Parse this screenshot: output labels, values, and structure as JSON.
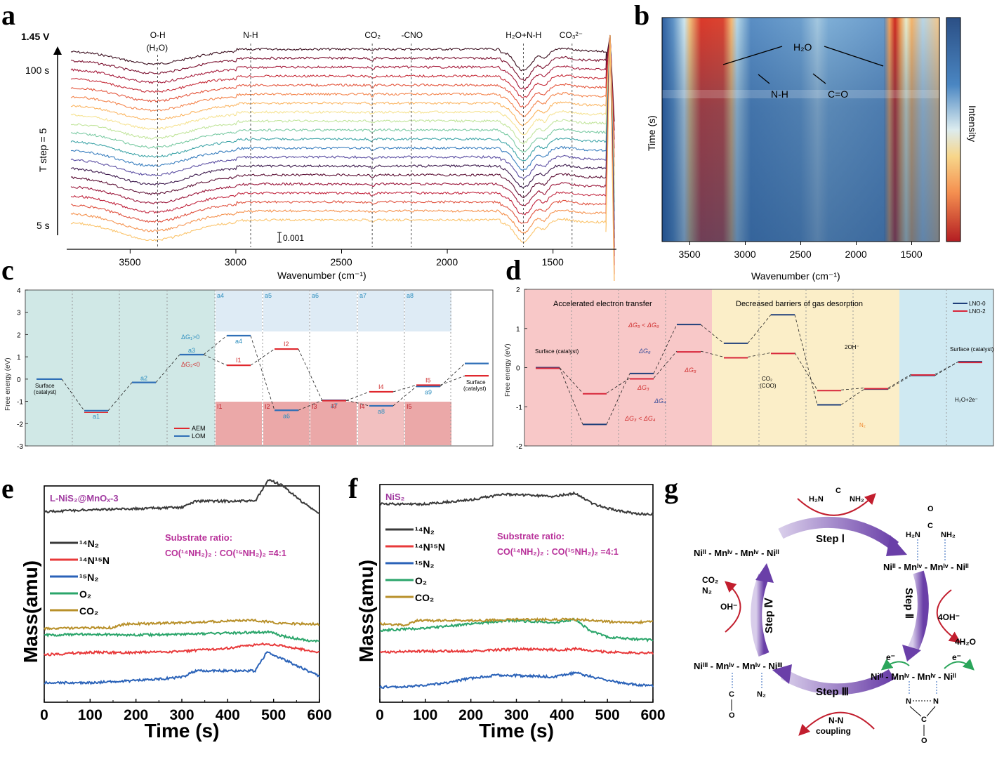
{
  "panel_labels": {
    "a": "a",
    "b": "b",
    "c": "c",
    "d": "d",
    "e": "e",
    "f": "f",
    "g": "g"
  },
  "chart_data": [
    {
      "id": "a",
      "type": "line",
      "title": "",
      "potential_label": "1.45 V",
      "ylabel": "T step = 5",
      "y_top_label": "100 s",
      "y_bottom_label": "5 s",
      "xlabel": "Wavenumber (cm⁻¹)",
      "xlim": [
        3800,
        1200
      ],
      "xticks": [
        3500,
        3000,
        2500,
        2000,
        1500
      ],
      "scale_bar_label": "0.001",
      "n_traces": 20,
      "trace_colors": [
        "#3b0f1f",
        "#7a0f2e",
        "#a61c3c",
        "#c7303d",
        "#e4573e",
        "#f4844c",
        "#fbb562",
        "#f6e394",
        "#c2e59d",
        "#7ccba4",
        "#3fa5a8",
        "#3a7fbf",
        "#5b4ea2",
        "#3d1a4d",
        "#5c1035",
        "#9a1539",
        "#c2263f",
        "#e0523f",
        "#f59350",
        "#fbc46c",
        "#d9ef9b",
        "#8ed1a3"
      ],
      "annotations": [
        {
          "label": "O-H",
          "sublabel": "(H₂O)",
          "x": 3370
        },
        {
          "label": "N-H",
          "x": 2930
        },
        {
          "label": "CO₂",
          "x": 2355
        },
        {
          "label": "-CNO",
          "x": 2170
        },
        {
          "label": "H₂O+N-H",
          "x": 1640
        },
        {
          "label": "CO₃²⁻",
          "x": 1410
        }
      ],
      "features": {
        "oh_dip_center": 3400,
        "nh_dip_center": 1640,
        "peak_at": 1230
      }
    },
    {
      "id": "b",
      "type": "heatmap",
      "xlabel": "Wavenumber (cm⁻¹)",
      "ylabel": "Time (s)",
      "colorbar_label": "Intensity",
      "xlim": [
        3750,
        1250
      ],
      "xticks": [
        3500,
        3000,
        2500,
        2000,
        1500
      ],
      "annotations": [
        "H₂O",
        "N-H",
        "C=O"
      ],
      "high_intensity_bands": [
        [
          3550,
          3200
        ],
        [
          1680,
          1600
        ]
      ]
    },
    {
      "id": "c",
      "type": "energy-diagram",
      "ylabel": "Free energy (eV)",
      "ylim": [
        -3,
        4
      ],
      "yticks": [
        4,
        3,
        2,
        1,
        0,
        -1,
        -2,
        -3
      ],
      "legend": [
        {
          "name": "AEM",
          "color": "#e0282e"
        },
        {
          "name": "LOM",
          "color": "#2f6fb7"
        }
      ],
      "levels_lom": [
        {
          "label": "Surface (catalyst)",
          "value": 0
        },
        {
          "label": "a1",
          "value": -1.42
        },
        {
          "label": "a2",
          "value": -0.15
        },
        {
          "label": "a3",
          "value": 1.1
        },
        {
          "label": "a4",
          "value": 1.95
        },
        {
          "label": "a6",
          "value": -1.4
        },
        {
          "label": "a7",
          "value": -0.95
        },
        {
          "label": "a8",
          "value": -1.2
        },
        {
          "label": "a9",
          "value": -0.33
        },
        {
          "label": "",
          "value": 0.7
        }
      ],
      "levels_aem": [
        {
          "label": "I1",
          "value": 0.62
        },
        {
          "label": "I2",
          "value": 1.35
        },
        {
          "label": "I3",
          "value": -0.97
        },
        {
          "label": "I4",
          "value": -0.57
        },
        {
          "label": "I5",
          "value": -0.27
        },
        {
          "label": "Surface (catalyst)",
          "value": 0.15
        }
      ],
      "delta_labels": [
        "ΔG₁>0",
        "ΔG₂<0"
      ],
      "structure_boxes_top": [
        "a4",
        "a5",
        "a6",
        "a7",
        "a8"
      ],
      "structure_boxes_bottom": [
        "I1",
        "I2",
        "I3",
        "I4",
        "I5"
      ]
    },
    {
      "id": "d",
      "type": "energy-diagram",
      "ylabel": "Free energy (eV)",
      "ylim": [
        -2,
        2
      ],
      "yticks": [
        2,
        1,
        0,
        -1,
        -2
      ],
      "legend": [
        {
          "name": "LNO-0",
          "color": "#1f3f7a"
        },
        {
          "name": "LNO-2",
          "color": "#d8263a"
        }
      ],
      "region_titles": [
        "Accelerated electron transfer",
        "Decreased barriers of gas desorption"
      ],
      "region_colors": [
        "#f8c8c8",
        "#fbeec8",
        "#cfe9f2"
      ],
      "levels_lno0": [
        0,
        -1.45,
        -0.15,
        1.1,
        0.62,
        1.35,
        -0.95,
        -0.55,
        -0.2,
        0.15
      ],
      "levels_lno2": [
        0,
        -0.65,
        -0.27,
        0.42,
        0.27,
        0.38,
        -0.57,
        -0.52,
        -0.17,
        0.15
      ],
      "annotations": [
        "ΔG₅ < ΔG₆",
        "ΔG₆",
        "ΔG₅",
        "ΔG₃",
        "ΔG₄",
        "ΔG₃ < ΔG₄",
        "Surface (catalyst)",
        "CO₂",
        "(COO)",
        "N₂",
        "2OH⁻",
        "H₂O+2e⁻",
        "e⁻"
      ]
    },
    {
      "id": "e",
      "type": "line",
      "sample_label": "L-NiS₂@MnOₓ-3",
      "xlabel": "Time (s)",
      "ylabel": "Mass(amu)",
      "xlim": [
        0,
        600
      ],
      "xticks": [
        0,
        100,
        200,
        300,
        400,
        500,
        600
      ],
      "annotation_line1": "Substrate ratio:",
      "annotation_line2": "CO(¹⁴NH₂)₂ : CO(¹⁵NH₂)₂ =4:1",
      "series": [
        {
          "name": "¹⁴N₂",
          "color": "#3a3a3a",
          "x": [
            0,
            100,
            200,
            300,
            330,
            460,
            490,
            520,
            560,
            600
          ],
          "y": [
            0.88,
            0.89,
            0.895,
            0.9,
            0.93,
            0.93,
            1.03,
            1.0,
            0.93,
            0.87
          ]
        },
        {
          "name": "¹⁴N¹⁵N",
          "color": "#e8393a",
          "x": [
            0,
            100,
            200,
            300,
            400,
            480,
            520,
            600
          ],
          "y": [
            0.22,
            0.23,
            0.23,
            0.235,
            0.25,
            0.27,
            0.26,
            0.23
          ]
        },
        {
          "name": "¹⁵N₂",
          "color": "#2a62b8",
          "x": [
            0,
            100,
            200,
            300,
            330,
            460,
            485,
            520,
            560,
            600
          ],
          "y": [
            0.09,
            0.09,
            0.1,
            0.115,
            0.145,
            0.145,
            0.23,
            0.2,
            0.16,
            0.12
          ]
        },
        {
          "name": "O₂",
          "color": "#2aa56a",
          "x": [
            0,
            100,
            200,
            300,
            400,
            490,
            520,
            560,
            600
          ],
          "y": [
            0.31,
            0.315,
            0.31,
            0.315,
            0.32,
            0.325,
            0.305,
            0.29,
            0.28
          ]
        },
        {
          "name": "CO₂",
          "color": "#b8902a",
          "x": [
            0,
            150,
            170,
            250,
            400,
            450,
            520,
            600
          ],
          "y": [
            0.34,
            0.345,
            0.36,
            0.365,
            0.375,
            0.38,
            0.365,
            0.36
          ]
        }
      ]
    },
    {
      "id": "f",
      "type": "line",
      "sample_label": "NiS₂",
      "xlabel": "Time (s)",
      "ylabel": "Mass(amu)",
      "xlim": [
        0,
        600
      ],
      "xticks": [
        0,
        100,
        200,
        300,
        400,
        500,
        600
      ],
      "annotation_line1": "Substrate ratio:",
      "annotation_line2": "CO(¹⁴NH₂)₂ : CO(¹⁵NH₂)₂ =4:1",
      "series": [
        {
          "name": "¹⁴N₂",
          "color": "#3a3a3a",
          "x": [
            0,
            100,
            200,
            270,
            330,
            380,
            430,
            470,
            520,
            570,
            600
          ],
          "y": [
            0.91,
            0.91,
            0.93,
            0.955,
            0.95,
            0.945,
            0.96,
            0.91,
            0.88,
            0.865,
            0.865
          ]
        },
        {
          "name": "¹⁴N¹⁵N",
          "color": "#e8393a",
          "x": [
            0,
            100,
            200,
            300,
            400,
            430,
            500,
            600
          ],
          "y": [
            0.23,
            0.235,
            0.235,
            0.245,
            0.24,
            0.245,
            0.23,
            0.225
          ]
        },
        {
          "name": "¹⁵N₂",
          "color": "#2a62b8",
          "x": [
            0,
            60,
            150,
            200,
            260,
            350,
            380,
            430,
            480,
            540,
            600
          ],
          "y": [
            0.07,
            0.07,
            0.09,
            0.11,
            0.125,
            0.12,
            0.115,
            0.135,
            0.11,
            0.085,
            0.075
          ]
        },
        {
          "name": "O₂",
          "color": "#2aa56a",
          "x": [
            0,
            100,
            200,
            280,
            360,
            380,
            430,
            460,
            500,
            560,
            600
          ],
          "y": [
            0.33,
            0.34,
            0.36,
            0.375,
            0.37,
            0.365,
            0.38,
            0.33,
            0.3,
            0.29,
            0.285
          ]
        },
        {
          "name": "CO₂",
          "color": "#b8902a",
          "x": [
            0,
            60,
            80,
            200,
            300,
            440,
            500,
            550,
            600
          ],
          "y": [
            0.36,
            0.355,
            0.375,
            0.375,
            0.38,
            0.38,
            0.37,
            0.365,
            0.37
          ]
        }
      ]
    }
  ],
  "scheme_g": {
    "top_left": "Niᴵᴵ - Mnᴵᵛ - Mnᴵᵛ - Niᴵᴵ",
    "top_right_metals": [
      "Ni",
      "II",
      "Mn",
      "IV",
      "Mn",
      "IV",
      "Ni",
      "II"
    ],
    "steps": [
      "Step Ⅰ",
      "Step Ⅱ",
      "Step Ⅲ",
      "Step Ⅳ"
    ],
    "reagents": {
      "urea_top": [
        "H₂N",
        "C",
        "NH₂"
      ],
      "urea_bound": [
        "O",
        "C",
        "H₂N",
        "NH₂"
      ],
      "step2_in": "4OH⁻",
      "step2_out": "4H₂O",
      "electron": "e⁻",
      "step3_label": "N-N",
      "step3_label2": "coupling",
      "step4_in": "OH⁻",
      "step4_out1": "CO₂",
      "step4_out2": "N₂",
      "bound_n2": "N₂",
      "bound_co": [
        "C",
        "O"
      ],
      "ring": [
        "N",
        "N",
        "C",
        "O"
      ]
    }
  }
}
